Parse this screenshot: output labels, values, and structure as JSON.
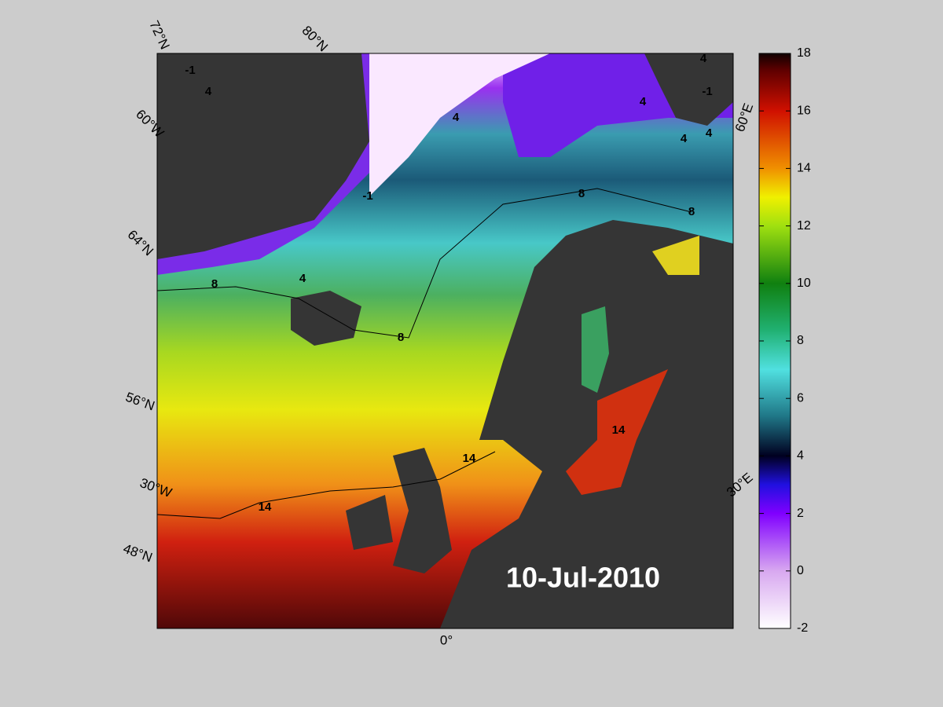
{
  "map": {
    "date": "10-Jul-2010",
    "graticule_labels": [
      "72°N",
      "80°N",
      "60°W",
      "64°N",
      "56°N",
      "30°W",
      "48°N",
      "0°",
      "30°E",
      "60°E"
    ],
    "contour_labels": [
      -1,
      -1,
      -1,
      4,
      4,
      4,
      4,
      4,
      4,
      4,
      8,
      8,
      8,
      8,
      14,
      14,
      14
    ]
  },
  "colorbar": {
    "lim": [
      -2,
      18
    ],
    "ticks": [
      -2,
      0,
      2,
      4,
      6,
      8,
      10,
      12,
      14,
      16,
      18
    ]
  }
}
